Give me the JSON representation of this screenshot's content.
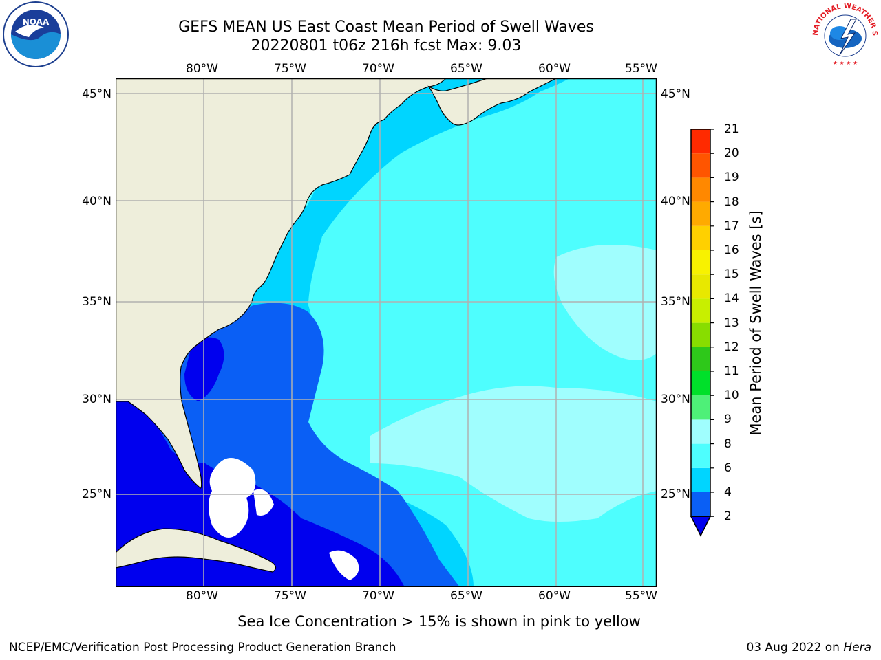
{
  "title_line1": "GEFS MEAN US East Coast Mean Period of Swell Waves",
  "title_line2": "20220801 t06z 216h fcst    Max: 9.03",
  "longitude_labels": [
    "80°W",
    "75°W",
    "70°W",
    "65°W",
    "60°W",
    "55°W"
  ],
  "latitude_labels": [
    "45°N",
    "40°N",
    "35°N",
    "30°N",
    "25°N"
  ],
  "map": {
    "lon_range": [
      -85,
      -54.6
    ],
    "lat_range": [
      20.5,
      46
    ],
    "gridlines": true,
    "land_color": "#eeeedb",
    "ocean_base_color": "#4efefe"
  },
  "colorbar": {
    "title": "Mean Period of Swell Waves [s]",
    "ticks": [
      "2",
      "4",
      "6",
      "8",
      "9",
      "10",
      "11",
      "12",
      "13",
      "14",
      "15",
      "16",
      "17",
      "18",
      "19",
      "20",
      "21"
    ],
    "colors": [
      "#0a5ff5",
      "#00d5ff",
      "#4efefe",
      "#a0fefe",
      "#4ef078",
      "#00e02a",
      "#2ec81a",
      "#88dd00",
      "#c8ef00",
      "#e8e800",
      "#f8f200",
      "#ffd000",
      "#ffaa00",
      "#ff8800",
      "#ff5500",
      "#ff2a00"
    ],
    "under_color": "#0000ee"
  },
  "note": "Sea Ice Concentration > 15% is shown in pink to yellow",
  "footer_left": "NCEP/EMC/Verification Post Processing Product Generation Branch",
  "footer_date": "03 Aug 2022 on",
  "footer_machine": "Hera",
  "logos": {
    "noaa": "NOAA",
    "nws": "NATIONAL WEATHER SERVICE"
  }
}
